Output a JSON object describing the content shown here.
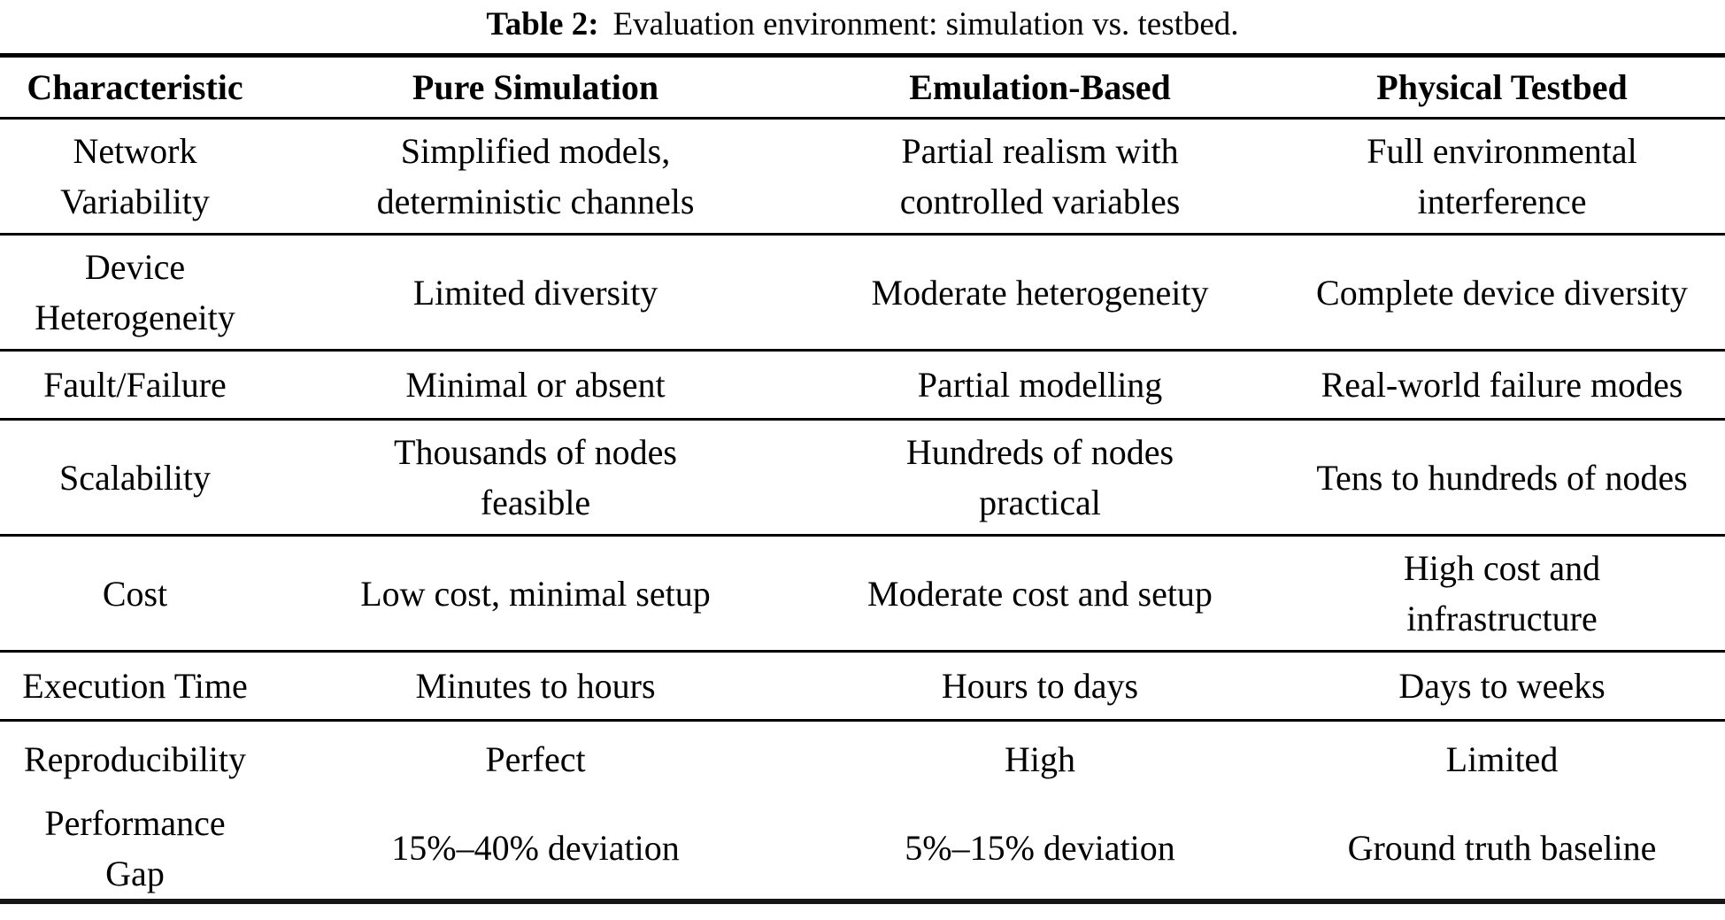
{
  "caption": {
    "label": "Table 2:",
    "text": "Evaluation environment: simulation vs. testbed."
  },
  "table": {
    "headers": [
      "Characteristic",
      "Pure Simulation",
      "Emulation-Based",
      "Physical Testbed"
    ],
    "rows": [
      {
        "cells": [
          [
            "Network",
            "Variability"
          ],
          [
            "Simplified models,",
            "deterministic channels"
          ],
          [
            "Partial realism with",
            "controlled variables"
          ],
          [
            "Full environmental",
            "interference"
          ]
        ]
      },
      {
        "cells": [
          [
            "Device",
            "Heterogeneity"
          ],
          "Limited diversity",
          "Moderate heterogeneity",
          "Complete device diversity"
        ]
      },
      {
        "cells": [
          "Fault/Failure",
          "Minimal or absent",
          "Partial modelling",
          "Real-world failure modes"
        ]
      },
      {
        "cells": [
          "Scalability",
          [
            "Thousands of nodes",
            "feasible"
          ],
          [
            "Hundreds of nodes",
            "practical"
          ],
          "Tens to hundreds of nodes"
        ]
      },
      {
        "cells": [
          "Cost",
          "Low cost, minimal setup",
          "Moderate cost and setup",
          [
            "High cost and",
            "infrastructure"
          ]
        ]
      },
      {
        "cells": [
          "Execution Time",
          "Minutes to hours",
          "Hours to days",
          "Days to weeks"
        ]
      },
      {
        "cells": [
          "Reproducibility",
          "Perfect",
          "High",
          "Limited"
        ]
      },
      {
        "cells": [
          [
            "Performance",
            "Gap"
          ],
          "15%–40% deviation",
          "5%–15% deviation",
          "Ground truth baseline"
        ]
      }
    ]
  }
}
